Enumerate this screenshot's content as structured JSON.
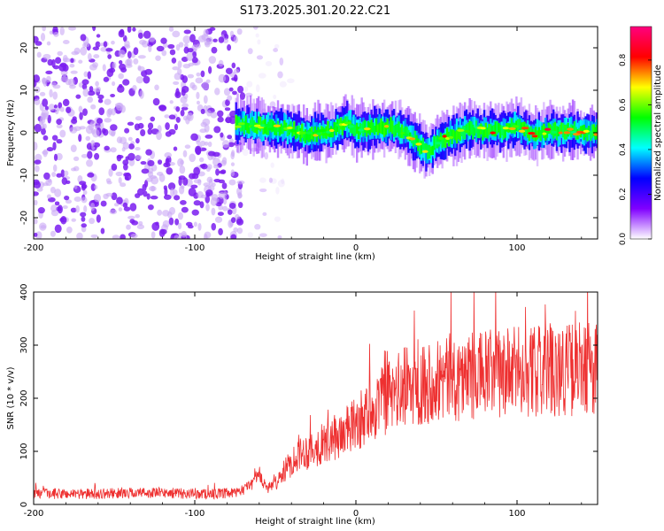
{
  "title": "S173.2025.301.20.22.C21",
  "chart_data": [
    {
      "type": "heatmap",
      "xlabel": "Height of straight line (km)",
      "ylabel": "Frequency (Hz)",
      "xlim": [
        -200,
        150
      ],
      "ylim": [
        -25,
        25
      ],
      "xticks": [
        -200,
        -100,
        0,
        100
      ],
      "yticks": [
        -20,
        -10,
        0,
        10,
        20
      ],
      "colorbar": {
        "label": "Normalized spectral amplitude",
        "range": [
          0,
          0.95
        ],
        "ticks": [
          0.0,
          0.2,
          0.4,
          0.6,
          0.8
        ],
        "colormap": [
          "#ffffff",
          "#8000ff",
          "#0000ff",
          "#00ffff",
          "#00ff00",
          "#ffff00",
          "#ff0000",
          "#ff007f"
        ]
      },
      "signal_track": [
        {
          "x": -75,
          "y": 2.0
        },
        {
          "x": -60,
          "y": 1.5
        },
        {
          "x": -45,
          "y": 1.0
        },
        {
          "x": -30,
          "y": -0.5
        },
        {
          "x": -15,
          "y": 0.5
        },
        {
          "x": -5,
          "y": 2.5
        },
        {
          "x": 0,
          "y": 0.5
        },
        {
          "x": 10,
          "y": 1.0
        },
        {
          "x": 20,
          "y": 1.5
        },
        {
          "x": 30,
          "y": 0.0
        },
        {
          "x": 40,
          "y": -3.0
        },
        {
          "x": 45,
          "y": -4.5
        },
        {
          "x": 50,
          "y": -2.0
        },
        {
          "x": 60,
          "y": -0.5
        },
        {
          "x": 70,
          "y": 1.0
        },
        {
          "x": 80,
          "y": 0.5
        },
        {
          "x": 90,
          "y": 0.5
        },
        {
          "x": 100,
          "y": 1.5
        },
        {
          "x": 110,
          "y": -0.5
        },
        {
          "x": 120,
          "y": 0.5
        },
        {
          "x": 130,
          "y": 0.5
        },
        {
          "x": 140,
          "y": 0.0
        },
        {
          "x": 150,
          "y": 0.0
        }
      ],
      "noise_region_x": [
        -200,
        -70
      ]
    },
    {
      "type": "line",
      "xlabel": "Height of straight line (km)",
      "ylabel": "SNR (10 * v/v)",
      "xlim": [
        -200,
        150
      ],
      "ylim": [
        0,
        400
      ],
      "xticks": [
        -200,
        -100,
        0,
        100
      ],
      "yticks": [
        0,
        100,
        200,
        300,
        400
      ],
      "color": "#ee3030",
      "series": [
        {
          "x": [
            -200,
            -180,
            -160,
            -140,
            -120,
            -100,
            -90,
            -80,
            -72,
            -65,
            -60,
            -55,
            -50,
            -45,
            -40,
            -35,
            -30,
            -20,
            -10,
            0,
            10,
            20,
            30,
            40,
            50,
            60,
            70,
            80,
            90,
            100,
            110,
            120,
            130,
            140,
            150
          ],
          "values": [
            20,
            20,
            20,
            22,
            22,
            20,
            20,
            20,
            22,
            40,
            55,
            30,
            40,
            60,
            80,
            100,
            100,
            115,
            130,
            150,
            180,
            200,
            220,
            230,
            235,
            240,
            240,
            245,
            245,
            250,
            250,
            255,
            255,
            255,
            260
          ]
        }
      ]
    }
  ]
}
